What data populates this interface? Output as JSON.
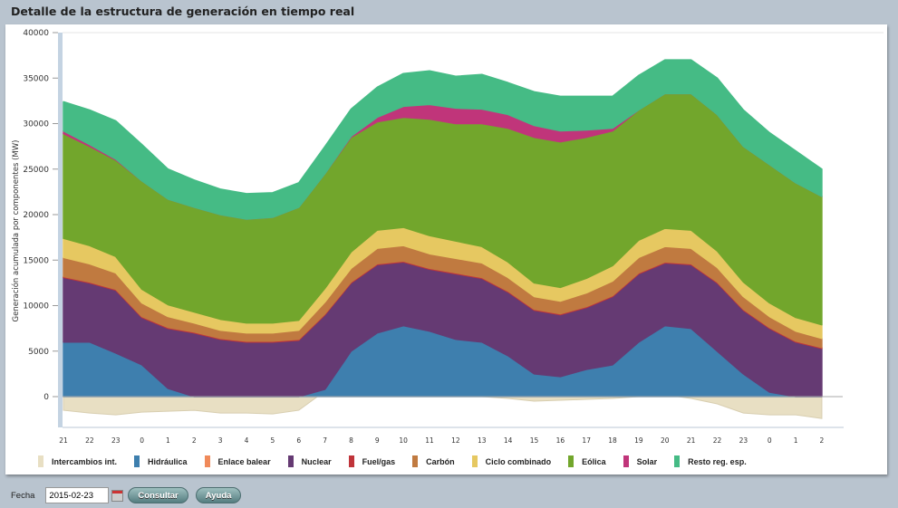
{
  "header": {
    "title": "Detalle de la estructura de generación en tiempo real"
  },
  "controls": {
    "date_label": "Fecha",
    "date_value": "2015-02-23",
    "calendar_icon": "calendar-icon",
    "consultar": "Consultar",
    "ayuda": "Ayuda"
  },
  "chart_data": {
    "type": "area",
    "stacked": true,
    "title": "",
    "xlabel": "",
    "ylabel": "Generación acumulada por componentes (MW)",
    "ylim": [
      -5000,
      40000
    ],
    "yticks": [
      "40000",
      "35000",
      "30000",
      "25000",
      "20000",
      "15000",
      "10000",
      "5000",
      "0"
    ],
    "ytick_values": [
      40000,
      35000,
      30000,
      25000,
      20000,
      15000,
      10000,
      5000,
      0
    ],
    "x": [
      "21",
      "22",
      "23",
      "0",
      "1",
      "2",
      "3",
      "4",
      "5",
      "6",
      "7",
      "8",
      "9",
      "10",
      "11",
      "12",
      "13",
      "14",
      "15",
      "16",
      "17",
      "18",
      "19",
      "20",
      "21",
      "22",
      "23",
      "0",
      "1",
      "2"
    ],
    "legend_position": "bottom",
    "series": [
      {
        "name": "Intercambios int.",
        "color": "#e8dfc3",
        "values": [
          -1500,
          -1800,
          -2000,
          -1700,
          -1600,
          -1500,
          -1800,
          -1800,
          -1900,
          -1500,
          600,
          500,
          700,
          600,
          300,
          100,
          0,
          -200,
          -500,
          -400,
          -300,
          -200,
          0,
          200,
          -200,
          -800,
          -1800,
          -2000,
          -2000,
          -2400
        ]
      },
      {
        "name": "Hidráulica",
        "color": "#3e7fae",
        "values": [
          6000,
          6000,
          4800,
          3500,
          900,
          0,
          0,
          0,
          0,
          0,
          800,
          5000,
          7000,
          7800,
          7200,
          6300,
          6000,
          4500,
          2500,
          2200,
          3000,
          3500,
          6000,
          7800,
          7500,
          5000,
          2500,
          500,
          0,
          0
        ]
      },
      {
        "name": "Enlace balear",
        "color": "#f08a5a",
        "values": [
          0,
          0,
          0,
          0,
          0,
          0,
          0,
          0,
          0,
          0,
          0,
          0,
          0,
          0,
          0,
          0,
          0,
          0,
          0,
          0,
          0,
          0,
          0,
          0,
          0,
          0,
          0,
          0,
          0,
          0
        ]
      },
      {
        "name": "Nuclear",
        "color": "#653a73",
        "values": [
          7100,
          6500,
          6900,
          5200,
          6600,
          7000,
          6300,
          6000,
          6000,
          6200,
          8200,
          7500,
          7500,
          7000,
          6800,
          7200,
          7000,
          7000,
          7000,
          6800,
          6800,
          7500,
          7500,
          6900,
          7000,
          7500,
          7000,
          7000,
          6000,
          5300
        ]
      },
      {
        "name": "Fuel/gas",
        "color": "#c0343a",
        "values": [
          100,
          100,
          100,
          100,
          100,
          100,
          100,
          100,
          100,
          100,
          100,
          100,
          100,
          100,
          100,
          100,
          100,
          100,
          100,
          100,
          100,
          100,
          100,
          100,
          100,
          100,
          100,
          100,
          100,
          100
        ]
      },
      {
        "name": "Carbón",
        "color": "#c07a40",
        "values": [
          2100,
          2000,
          1800,
          1500,
          1200,
          1000,
          900,
          900,
          900,
          1000,
          1300,
          1500,
          1700,
          1700,
          1600,
          1600,
          1600,
          1500,
          1400,
          1400,
          1500,
          1600,
          1700,
          1700,
          1700,
          1600,
          1400,
          1200,
          1100,
          1000
        ]
      },
      {
        "name": "Ciclo combinado",
        "color": "#e6c861",
        "values": [
          2100,
          2000,
          1800,
          1500,
          1300,
          1200,
          1200,
          1100,
          1100,
          1100,
          1500,
          1800,
          2000,
          2000,
          2000,
          1900,
          1800,
          1700,
          1500,
          1500,
          1600,
          1700,
          1900,
          2000,
          2000,
          1800,
          1600,
          1500,
          1500,
          1500
        ]
      },
      {
        "name": "Eólica",
        "color": "#72a62c",
        "values": [
          11500,
          10900,
          10600,
          11900,
          11600,
          11500,
          11500,
          11400,
          11600,
          12400,
          12600,
          12600,
          11900,
          12100,
          12800,
          12900,
          13500,
          14700,
          16000,
          16000,
          15500,
          14800,
          14300,
          14800,
          15000,
          15000,
          14900,
          15200,
          14800,
          14100
        ]
      },
      {
        "name": "Solar",
        "color": "#c0357a",
        "values": [
          300,
          200,
          100,
          0,
          0,
          0,
          0,
          0,
          0,
          0,
          0,
          100,
          500,
          1200,
          1600,
          1700,
          1600,
          1500,
          1300,
          1200,
          800,
          300,
          0,
          0,
          0,
          0,
          0,
          0,
          0,
          0
        ]
      },
      {
        "name": "Resto reg. esp.",
        "color": "#45bb85",
        "values": [
          3200,
          3800,
          4200,
          4000,
          3300,
          3000,
          2800,
          2800,
          2700,
          2700,
          3000,
          3000,
          3300,
          3600,
          3700,
          3500,
          3800,
          3500,
          3700,
          3800,
          3700,
          3500,
          3800,
          3700,
          3700,
          4000,
          4000,
          3500,
          3500,
          3000
        ]
      }
    ]
  }
}
